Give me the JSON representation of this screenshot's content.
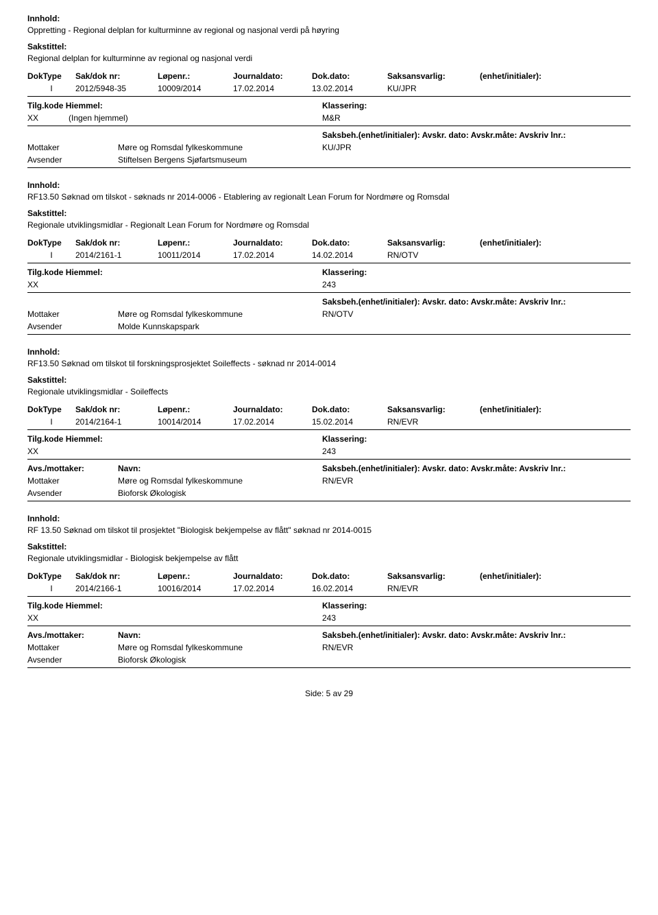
{
  "labels": {
    "innhold": "Innhold:",
    "sakstittel": "Sakstittel:",
    "doktype": "DokType",
    "sakdoknr": "Sak/dok nr:",
    "lopenr": "Løpenr.:",
    "journaldato": "Journaldato:",
    "dokdato": "Dok.dato:",
    "saksansvarlig": "Saksansvarlig:",
    "enhet_initialer": "(enhet/initialer):",
    "tilgkode_hiemmel": "Tilg.kode Hiemmel:",
    "klassering": "Klassering:",
    "avs_mottaker": "Avs./mottaker:",
    "navn": "Navn:",
    "saksbeh_line": "Saksbeh.(enhet/initialer): Avskr. dato:  Avskr.måte:  Avskriv lnr.:",
    "mottaker": "Mottaker",
    "avsender": "Avsender",
    "side_prefix": "Side: ",
    "side_value": "5 av 29"
  },
  "entries": [
    {
      "innhold": "Oppretting - Regional delplan for kulturminne av regional og nasjonal verdi på høyring",
      "sakstittel": "Regional delplan for kulturminne av regional og nasjonal verdi",
      "doktype": "I",
      "sakdoknr": "2012/5948-35",
      "lopenr": "10009/2014",
      "journaldato": "17.02.2014",
      "dokdato": "13.02.2014",
      "saksansvarlig": "KU/JPR",
      "enhet_initialer": "",
      "tilgkode": "XX",
      "hiemmel": "(Ingen hjemmel)",
      "klassering": "M&R",
      "mottaker_name": "Møre og Romsdal fylkeskommune",
      "saksbeh": "KU/JPR",
      "avsender_name": "Stiftelsen Bergens Sjøfartsmuseum",
      "show_party_header": false
    },
    {
      "innhold": "RF13.50 Søknad om tilskot - søknads nr 2014-0006 - Etablering av regionalt Lean Forum for Nordmøre og Romsdal",
      "sakstittel": "Regionale utviklingsmidlar - Regionalt Lean Forum for Nordmøre og Romsdal",
      "doktype": "I",
      "sakdoknr": "2014/2161-1",
      "lopenr": "10011/2014",
      "journaldato": "17.02.2014",
      "dokdato": "14.02.2014",
      "saksansvarlig": "RN/OTV",
      "enhet_initialer": "",
      "tilgkode": "XX",
      "hiemmel": "",
      "klassering": "243",
      "mottaker_name": "Møre og Romsdal fylkeskommune",
      "saksbeh": "RN/OTV",
      "avsender_name": "Molde Kunnskapspark",
      "show_party_header": false
    },
    {
      "innhold": "RF13.50 Søknad om tilskot til forskningsprosjektet Soileffects - søknad nr 2014-0014",
      "sakstittel": "Regionale utviklingsmidlar - Soileffects",
      "doktype": "I",
      "sakdoknr": "2014/2164-1",
      "lopenr": "10014/2014",
      "journaldato": "17.02.2014",
      "dokdato": "15.02.2014",
      "saksansvarlig": "RN/EVR",
      "enhet_initialer": "",
      "tilgkode": "XX",
      "hiemmel": "",
      "klassering": "243",
      "mottaker_name": "Møre og Romsdal fylkeskommune",
      "saksbeh": "RN/EVR",
      "avsender_name": "Bioforsk Økologisk",
      "show_party_header": true
    },
    {
      "innhold": "RF 13.50 Søknad om tilskot til prosjektet \"Biologisk bekjempelse av flått\"  søknad nr 2014-0015",
      "sakstittel": "Regionale utviklingsmidlar - Biologisk bekjempelse av flått",
      "doktype": "I",
      "sakdoknr": "2014/2166-1",
      "lopenr": "10016/2014",
      "journaldato": "17.02.2014",
      "dokdato": "16.02.2014",
      "saksansvarlig": "RN/EVR",
      "enhet_initialer": "",
      "tilgkode": "XX",
      "hiemmel": "",
      "klassering": "243",
      "mottaker_name": "Møre og Romsdal fylkeskommune",
      "saksbeh": "RN/EVR",
      "avsender_name": "Bioforsk Økologisk",
      "show_party_header": true
    }
  ]
}
